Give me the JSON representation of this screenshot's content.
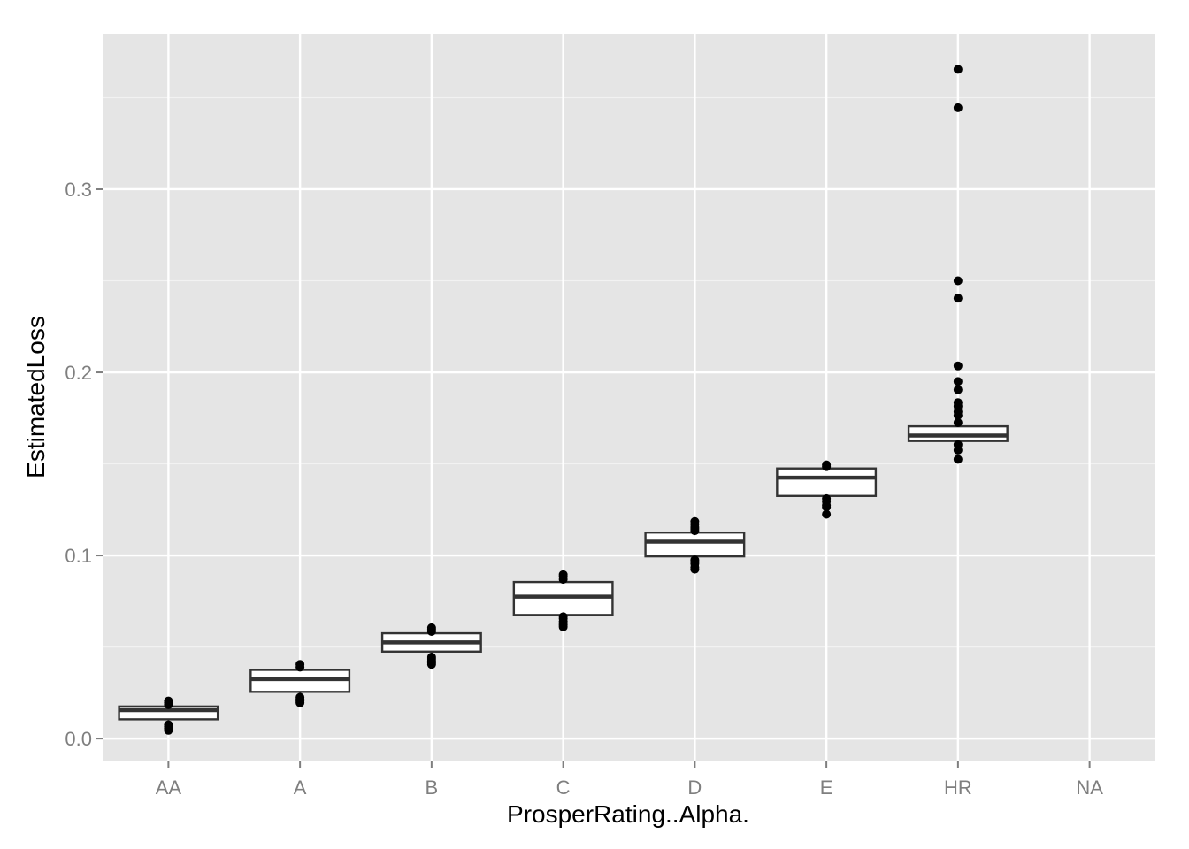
{
  "chart_data": {
    "type": "boxplot",
    "xlabel": "ProsperRating..Alpha.",
    "ylabel": "EstimatedLoss",
    "categories": [
      "AA",
      "A",
      "B",
      "C",
      "D",
      "E",
      "HR",
      "NA"
    ],
    "ylim": [
      -0.0125,
      0.385
    ],
    "yticks": [
      0.0,
      0.1,
      0.2,
      0.3
    ],
    "ytick_labels": [
      "0.0",
      "0.1",
      "0.2",
      "0.3"
    ],
    "grid": true,
    "boxes": [
      {
        "category": "AA",
        "q1": 0.0105,
        "median": 0.0155,
        "q3": 0.0175,
        "whisker_low": 0.0055,
        "whisker_high": 0.0195,
        "outliers": [
          0.0045,
          0.0055,
          0.0065,
          0.0075,
          0.0185,
          0.0195,
          0.0205
        ]
      },
      {
        "category": "A",
        "q1": 0.0255,
        "median": 0.0325,
        "q3": 0.0375,
        "whisker_low": 0.0225,
        "whisker_high": 0.0385,
        "outliers": [
          0.0195,
          0.0205,
          0.0215,
          0.0225,
          0.039,
          0.0405
        ]
      },
      {
        "category": "B",
        "q1": 0.0475,
        "median": 0.0525,
        "q3": 0.0575,
        "whisker_low": 0.0425,
        "whisker_high": 0.0595,
        "outliers": [
          0.0405,
          0.0415,
          0.0425,
          0.0435,
          0.0445,
          0.0585,
          0.0595,
          0.0605
        ]
      },
      {
        "category": "C",
        "q1": 0.0675,
        "median": 0.0775,
        "q3": 0.0855,
        "whisker_low": 0.0625,
        "whisker_high": 0.0885,
        "outliers": [
          0.061,
          0.062,
          0.063,
          0.064,
          0.0655,
          0.0665,
          0.087,
          0.0885,
          0.0895
        ]
      },
      {
        "category": "D",
        "q1": 0.0995,
        "median": 0.1075,
        "q3": 0.1125,
        "whisker_low": 0.094,
        "whisker_high": 0.117,
        "outliers": [
          0.0925,
          0.0935,
          0.0955,
          0.0965,
          0.0975,
          0.1135,
          0.1145,
          0.1155,
          0.117,
          0.1185
        ]
      },
      {
        "category": "E",
        "q1": 0.1325,
        "median": 0.1425,
        "q3": 0.1475,
        "whisker_low": 0.127,
        "whisker_high": 0.149,
        "outliers": [
          0.1225,
          0.1265,
          0.1275,
          0.1295,
          0.131,
          0.1485,
          0.1495
        ]
      },
      {
        "category": "HR",
        "q1": 0.1625,
        "median": 0.1655,
        "q3": 0.1705,
        "whisker_low": 0.1555,
        "whisker_high": 0.1735,
        "outliers": [
          0.1525,
          0.1575,
          0.1605,
          0.1725,
          0.1765,
          0.1785,
          0.1815,
          0.1835,
          0.1905,
          0.195,
          0.2035,
          0.2405,
          0.25,
          0.3445,
          0.3655
        ]
      }
    ],
    "colors": {
      "panel_background": "#e5e5e5",
      "grid_major": "#ffffff",
      "grid_minor": "#f2f2f2",
      "box_fill": "#ffffff",
      "box_stroke": "#333333",
      "outlier": "#000000"
    }
  }
}
